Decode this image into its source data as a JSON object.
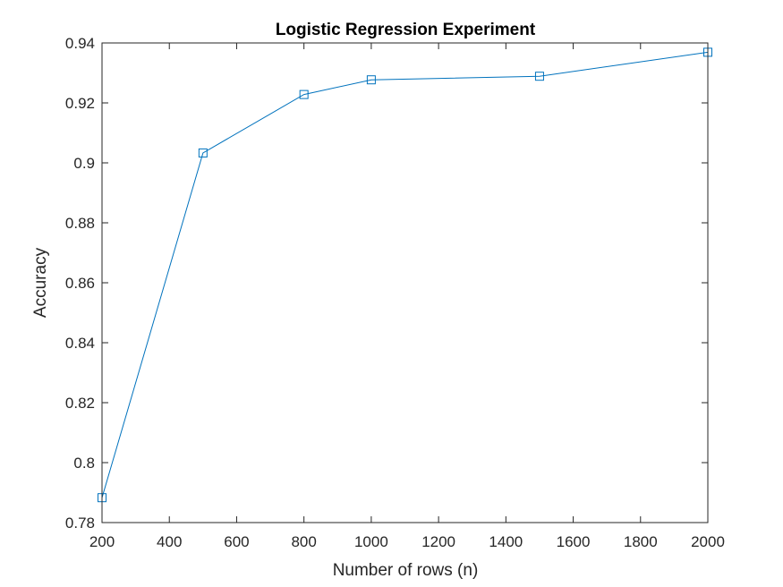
{
  "chart_data": {
    "type": "line",
    "title": "Logistic Regression Experiment",
    "xlabel": "Number of rows (n)",
    "ylabel": "Accuracy",
    "xlim": [
      200,
      2000
    ],
    "ylim": [
      0.78,
      0.94
    ],
    "xticks": [
      200,
      400,
      600,
      800,
      1000,
      1200,
      1400,
      1600,
      1800,
      2000
    ],
    "xtick_labels": [
      "200",
      "400",
      "600",
      "800",
      "1000",
      "1200",
      "1400",
      "1600",
      "1800",
      "2000"
    ],
    "yticks": [
      0.78,
      0.8,
      0.82,
      0.84,
      0.86,
      0.88,
      0.9,
      0.92,
      0.94
    ],
    "ytick_labels": [
      "0.78",
      "0.8",
      "0.82",
      "0.84",
      "0.86",
      "0.88",
      "0.9",
      "0.92",
      "0.94"
    ],
    "grid": false,
    "marker": "square",
    "series": [
      {
        "color": "#0072BD",
        "x": [
          200,
          500,
          800,
          1000,
          1500,
          2000
        ],
        "y": [
          0.7883,
          0.9033,
          0.9228,
          0.9277,
          0.9289,
          0.9369
        ]
      }
    ]
  }
}
